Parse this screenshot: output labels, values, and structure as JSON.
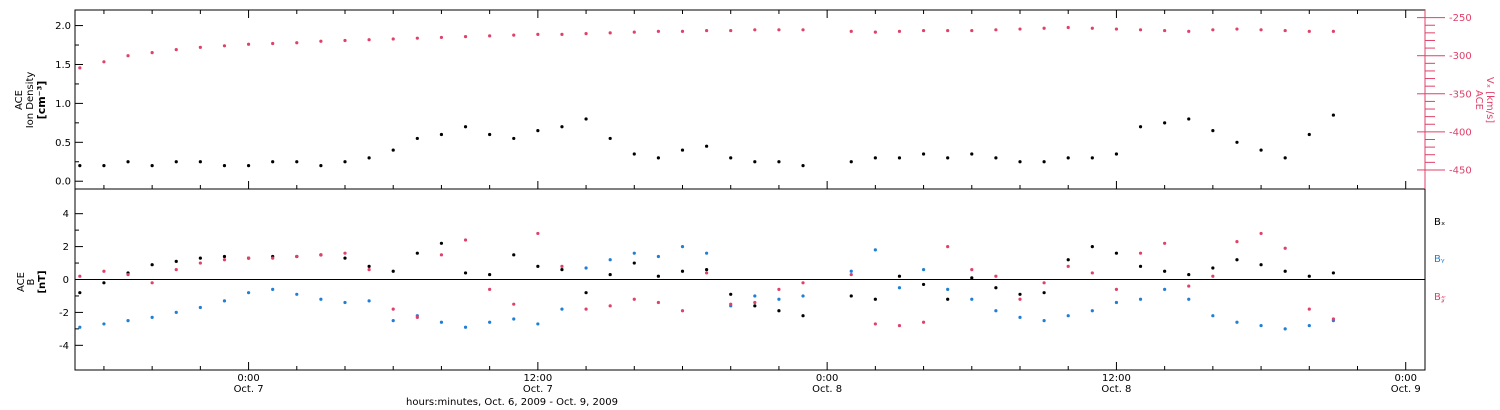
{
  "colors": {
    "density": "#000000",
    "velocity": "#e0406a",
    "bx": "#000000",
    "by": "#1f7fd6",
    "bz": "#e0406a",
    "axis": "#000000"
  },
  "xaxis": {
    "title": "hours:minutes, Oct.  6, 2009 - Oct.  9, 2009",
    "range_hours": [
      -7.2,
      48.8
    ],
    "ticks": [
      {
        "hour": 0,
        "time": "0:00",
        "date": "Oct. 7"
      },
      {
        "hour": 12,
        "time": "12:00",
        "date": "Oct. 7"
      },
      {
        "hour": 24,
        "time": "0:00",
        "date": "Oct. 8"
      },
      {
        "hour": 36,
        "time": "12:00",
        "date": "Oct. 8"
      },
      {
        "hour": 48,
        "time": "0:00",
        "date": "Oct. 9"
      }
    ]
  },
  "top_panel": {
    "left_label": [
      "ACE",
      "Ion Density",
      "[cm⁻³]"
    ],
    "right_label": [
      "ACE",
      "Vₓ [km/s]"
    ],
    "left_ticks": [
      "0.0",
      "0.5",
      "1.0",
      "1.5",
      "2.0"
    ],
    "right_ticks": [
      "-450",
      "-400",
      "-350",
      "-300",
      "-250"
    ]
  },
  "bottom_panel": {
    "left_label": [
      "ACE",
      "B",
      "[nT]"
    ],
    "ticks": [
      "-4",
      "-2",
      "0",
      "2",
      "4"
    ],
    "legend": [
      "Bₓ",
      "Bᵧ",
      "B𝓏"
    ]
  },
  "chart_data": [
    {
      "type": "scatter",
      "ylabel_left": "ACE Ion Density [cm⁻³]",
      "ylabel_right": "ACE Vₓ [km/s]",
      "ylim_left": [
        -0.1,
        2.2
      ],
      "ylim_right": [
        -475,
        -240
      ],
      "data_gap_hours": [
        23.8,
        24.6
      ],
      "series": [
        {
          "name": "Ion Density",
          "axis": "left",
          "x": [
            -7,
            -6,
            -5,
            -4,
            -3,
            -2,
            -1,
            0,
            1,
            2,
            3,
            4,
            5,
            6,
            7,
            8,
            9,
            10,
            11,
            12,
            13,
            14,
            15,
            16,
            17,
            18,
            19,
            20,
            21,
            22,
            23,
            25,
            26,
            27,
            28,
            29,
            30,
            31,
            32,
            33,
            34,
            35,
            36,
            37,
            38,
            39,
            40,
            41,
            42,
            43,
            44,
            45
          ],
          "y": [
            0.2,
            0.2,
            0.25,
            0.2,
            0.25,
            0.25,
            0.2,
            0.2,
            0.25,
            0.25,
            0.2,
            0.25,
            0.3,
            0.4,
            0.55,
            0.6,
            0.7,
            0.6,
            0.55,
            0.65,
            0.7,
            0.8,
            0.55,
            0.35,
            0.3,
            0.4,
            0.45,
            0.3,
            0.25,
            0.25,
            0.2,
            0.25,
            0.3,
            0.3,
            0.35,
            0.3,
            0.35,
            0.3,
            0.25,
            0.25,
            0.3,
            0.3,
            0.35,
            0.7,
            0.75,
            0.8,
            0.65,
            0.5,
            0.4,
            0.3,
            0.6,
            0.85
          ]
        },
        {
          "name": "Vx",
          "axis": "right",
          "x": [
            -7,
            -6,
            -5,
            -4,
            -3,
            -2,
            -1,
            0,
            1,
            2,
            3,
            4,
            5,
            6,
            7,
            8,
            9,
            10,
            11,
            12,
            13,
            14,
            15,
            16,
            17,
            18,
            19,
            20,
            21,
            22,
            23,
            25,
            26,
            27,
            28,
            29,
            30,
            31,
            32,
            33,
            34,
            35,
            36,
            37,
            38,
            39,
            40,
            41,
            42,
            43,
            44,
            45
          ],
          "y": [
            -316,
            -308,
            -300,
            -296,
            -292,
            -289,
            -287,
            -285,
            -284,
            -283,
            -281,
            -280,
            -279,
            -278,
            -277,
            -276,
            -275,
            -274,
            -273,
            -272,
            -272,
            -271,
            -270,
            -269,
            -268,
            -268,
            -267,
            -267,
            -266,
            -266,
            -266,
            -268,
            -269,
            -268,
            -267,
            -267,
            -267,
            -266,
            -265,
            -264,
            -263,
            -264,
            -265,
            -266,
            -267,
            -268,
            -266,
            -265,
            -266,
            -267,
            -268,
            -268
          ]
        }
      ]
    },
    {
      "type": "scatter",
      "ylabel": "ACE B [nT]",
      "ylim": [
        -5.5,
        5.5
      ],
      "data_gap_hours": [
        23.8,
        24.6
      ],
      "series": [
        {
          "name": "Bₓ",
          "x": [
            -7,
            -6,
            -5,
            -4,
            -3,
            -2,
            -1,
            0,
            1,
            2,
            3,
            4,
            5,
            6,
            7,
            8,
            9,
            10,
            11,
            12,
            13,
            14,
            15,
            16,
            17,
            18,
            19,
            20,
            21,
            22,
            23,
            25,
            26,
            27,
            28,
            29,
            30,
            31,
            32,
            33,
            34,
            35,
            36,
            37,
            38,
            39,
            40,
            41,
            42,
            43,
            44,
            45
          ],
          "y": [
            -0.8,
            -0.2,
            0.4,
            0.9,
            1.1,
            1.3,
            1.4,
            1.3,
            1.4,
            1.4,
            1.5,
            1.3,
            0.8,
            0.5,
            1.6,
            2.2,
            0.4,
            0.3,
            1.5,
            0.8,
            0.6,
            -0.8,
            0.3,
            1.0,
            0.2,
            0.5,
            0.6,
            -0.9,
            -1.6,
            -1.9,
            -2.2,
            -1.0,
            -1.2,
            0.2,
            -0.3,
            -1.2,
            0.1,
            -0.5,
            -0.9,
            -0.8,
            1.2,
            2.0,
            1.6,
            0.8,
            0.5,
            0.3,
            0.7,
            1.2,
            0.9,
            0.5,
            0.2,
            0.4
          ]
        },
        {
          "name": "Bᵧ",
          "x": [
            -7,
            -6,
            -5,
            -4,
            -3,
            -2,
            -1,
            0,
            1,
            2,
            3,
            4,
            5,
            6,
            7,
            8,
            9,
            10,
            11,
            12,
            13,
            14,
            15,
            16,
            17,
            18,
            19,
            20,
            21,
            22,
            23,
            25,
            26,
            27,
            28,
            29,
            30,
            31,
            32,
            33,
            34,
            35,
            36,
            37,
            38,
            39,
            40,
            41,
            42,
            43,
            44,
            45
          ],
          "y": [
            -2.9,
            -2.7,
            -2.5,
            -2.3,
            -2.0,
            -1.7,
            -1.3,
            -0.8,
            -0.6,
            -0.9,
            -1.2,
            -1.4,
            -1.3,
            -2.5,
            -2.2,
            -2.6,
            -2.9,
            -2.6,
            -2.4,
            -2.7,
            -1.8,
            0.7,
            1.2,
            1.6,
            1.4,
            2.0,
            1.6,
            -1.6,
            -1.0,
            -1.2,
            -1.0,
            0.5,
            1.8,
            -0.5,
            0.6,
            -0.6,
            -1.2,
            -1.9,
            -2.3,
            -2.5,
            -2.2,
            -1.9,
            -1.4,
            -1.2,
            -0.6,
            -1.2,
            -2.2,
            -2.6,
            -2.8,
            -3.0,
            -2.8,
            -2.5
          ]
        },
        {
          "name": "B𝓏",
          "x": [
            -7,
            -6,
            -5,
            -4,
            -3,
            -2,
            -1,
            0,
            1,
            2,
            3,
            4,
            5,
            6,
            7,
            8,
            9,
            10,
            11,
            12,
            13,
            14,
            15,
            16,
            17,
            18,
            19,
            20,
            21,
            22,
            23,
            25,
            26,
            27,
            28,
            29,
            30,
            31,
            32,
            33,
            34,
            35,
            36,
            37,
            38,
            39,
            40,
            41,
            42,
            43,
            44,
            45
          ],
          "y": [
            0.2,
            0.5,
            0.3,
            -0.2,
            0.6,
            1.0,
            1.2,
            1.3,
            1.3,
            1.4,
            1.5,
            1.6,
            0.6,
            -1.8,
            -2.3,
            1.5,
            2.4,
            -0.6,
            -1.5,
            2.8,
            0.8,
            -1.8,
            -1.6,
            -1.2,
            -1.4,
            -1.9,
            0.4,
            -1.5,
            -1.4,
            -0.6,
            -0.2,
            0.3,
            -2.7,
            -2.8,
            -2.6,
            2.0,
            0.6,
            0.2,
            -1.2,
            -0.2,
            0.8,
            0.4,
            -0.6,
            1.6,
            2.2,
            -0.4,
            0.2,
            2.3,
            2.8,
            1.9,
            -1.8,
            -2.4
          ]
        }
      ]
    }
  ]
}
